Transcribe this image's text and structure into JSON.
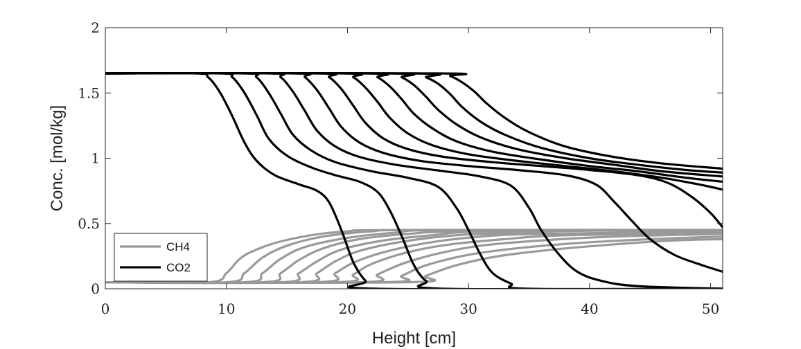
{
  "chart_data": {
    "type": "line",
    "title": "",
    "xlabel": "Height [cm]",
    "ylabel": "Conc. [mol/kg]",
    "xlim": [
      0,
      51
    ],
    "ylim": [
      0,
      2
    ],
    "xticks": [
      0,
      10,
      20,
      30,
      40,
      50
    ],
    "yticks": [
      0,
      0.5,
      1,
      1.5,
      2
    ],
    "xtick_labels": [
      "0",
      "10",
      "20",
      "30",
      "40",
      "50"
    ],
    "ytick_labels": [
      "0",
      "0.5",
      "1",
      "1.5",
      "2"
    ],
    "grid": false,
    "box": true,
    "legend": {
      "position": "bottom-left",
      "entries": [
        "CH4",
        "CO2"
      ]
    },
    "colors": {
      "CH4": "#999999",
      "CO2": "#000000"
    },
    "series": [
      {
        "name": "CH4",
        "curves": [
          [
            [
              0,
              0.05
            ],
            [
              8.5,
              0.05
            ],
            [
              10,
              0.12
            ],
            [
              11,
              0.22
            ],
            [
              12,
              0.28
            ],
            [
              14,
              0.35
            ],
            [
              17,
              0.41
            ],
            [
              20,
              0.44
            ],
            [
              24,
              0.45
            ],
            [
              51,
              0.45
            ]
          ],
          [
            [
              0,
              0.05
            ],
            [
              10,
              0.05
            ],
            [
              11.5,
              0.12
            ],
            [
              13,
              0.24
            ],
            [
              15,
              0.33
            ],
            [
              18,
              0.4
            ],
            [
              22,
              0.44
            ],
            [
              26,
              0.45
            ],
            [
              51,
              0.45
            ]
          ],
          [
            [
              0,
              0.05
            ],
            [
              11.5,
              0.05
            ],
            [
              13,
              0.12
            ],
            [
              14.5,
              0.23
            ],
            [
              16.5,
              0.32
            ],
            [
              20,
              0.39
            ],
            [
              24,
              0.43
            ],
            [
              28,
              0.45
            ],
            [
              51,
              0.45
            ]
          ],
          [
            [
              0,
              0.05
            ],
            [
              13,
              0.05
            ],
            [
              14.5,
              0.12
            ],
            [
              16,
              0.22
            ],
            [
              18,
              0.31
            ],
            [
              21,
              0.38
            ],
            [
              25,
              0.42
            ],
            [
              30,
              0.44
            ],
            [
              51,
              0.45
            ]
          ],
          [
            [
              0,
              0.05
            ],
            [
              14.5,
              0.05
            ],
            [
              16,
              0.12
            ],
            [
              17.5,
              0.21
            ],
            [
              19.5,
              0.3
            ],
            [
              23,
              0.37
            ],
            [
              27,
              0.41
            ],
            [
              32,
              0.44
            ],
            [
              51,
              0.45
            ]
          ],
          [
            [
              0,
              0.05
            ],
            [
              16,
              0.05
            ],
            [
              17.5,
              0.12
            ],
            [
              19,
              0.21
            ],
            [
              21,
              0.29
            ],
            [
              24.5,
              0.36
            ],
            [
              29,
              0.41
            ],
            [
              34,
              0.43
            ],
            [
              40,
              0.445
            ],
            [
              51,
              0.45
            ]
          ],
          [
            [
              0,
              0.05
            ],
            [
              17.5,
              0.05
            ],
            [
              19,
              0.12
            ],
            [
              20.5,
              0.2
            ],
            [
              23,
              0.28
            ],
            [
              26.5,
              0.35
            ],
            [
              31,
              0.4
            ],
            [
              36,
              0.42
            ],
            [
              51,
              0.44
            ]
          ],
          [
            [
              0,
              0.05
            ],
            [
              19,
              0.05
            ],
            [
              20.5,
              0.11
            ],
            [
              22,
              0.19
            ],
            [
              25,
              0.28
            ],
            [
              28.5,
              0.34
            ],
            [
              33,
              0.38
            ],
            [
              38,
              0.41
            ],
            [
              51,
              0.43
            ]
          ],
          [
            [
              0,
              0.05
            ],
            [
              21,
              0.05
            ],
            [
              22.5,
              0.11
            ],
            [
              24.5,
              0.19
            ],
            [
              27.5,
              0.27
            ],
            [
              31,
              0.33
            ],
            [
              36,
              0.37
            ],
            [
              42,
              0.4
            ],
            [
              51,
              0.42
            ]
          ],
          [
            [
              0,
              0.05
            ],
            [
              23,
              0.05
            ],
            [
              24.5,
              0.1
            ],
            [
              26.5,
              0.18
            ],
            [
              30,
              0.26
            ],
            [
              34,
              0.31
            ],
            [
              39,
              0.35
            ],
            [
              45,
              0.38
            ],
            [
              51,
              0.4
            ]
          ],
          [
            [
              0,
              0.05
            ],
            [
              25,
              0.05
            ],
            [
              26.5,
              0.1
            ],
            [
              29,
              0.18
            ],
            [
              32.5,
              0.25
            ],
            [
              37,
              0.3
            ],
            [
              42,
              0.34
            ],
            [
              47,
              0.37
            ],
            [
              51,
              0.38
            ]
          ]
        ]
      },
      {
        "name": "CO2",
        "curves": [
          [
            [
              0,
              1.65
            ],
            [
              7.5,
              1.65
            ],
            [
              8.5,
              1.62
            ],
            [
              9.5,
              1.5
            ],
            [
              10.5,
              1.32
            ],
            [
              11.5,
              1.12
            ],
            [
              12.5,
              0.98
            ],
            [
              14,
              0.87
            ],
            [
              16,
              0.8
            ],
            [
              17.5,
              0.75
            ],
            [
              18.5,
              0.66
            ],
            [
              19.5,
              0.45
            ],
            [
              20.5,
              0.2
            ],
            [
              21.5,
              0.06
            ],
            [
              22.5,
              0.0
            ],
            [
              51,
              0.0
            ]
          ],
          [
            [
              0,
              1.65
            ],
            [
              9.5,
              1.65
            ],
            [
              10.5,
              1.62
            ],
            [
              11.5,
              1.5
            ],
            [
              12.5,
              1.33
            ],
            [
              13.5,
              1.15
            ],
            [
              15,
              1.02
            ],
            [
              17,
              0.93
            ],
            [
              19,
              0.87
            ],
            [
              21,
              0.82
            ],
            [
              22.5,
              0.74
            ],
            [
              23.5,
              0.6
            ],
            [
              24.5,
              0.4
            ],
            [
              25.5,
              0.18
            ],
            [
              26.5,
              0.06
            ],
            [
              28,
              0.0
            ],
            [
              51,
              0.0
            ]
          ],
          [
            [
              0,
              1.65
            ],
            [
              11.5,
              1.65
            ],
            [
              12.5,
              1.62
            ],
            [
              13.5,
              1.5
            ],
            [
              14.5,
              1.34
            ],
            [
              15.5,
              1.18
            ],
            [
              17,
              1.06
            ],
            [
              19,
              0.97
            ],
            [
              22,
              0.9
            ],
            [
              25,
              0.85
            ],
            [
              27.5,
              0.78
            ],
            [
              29,
              0.62
            ],
            [
              30,
              0.45
            ],
            [
              31,
              0.26
            ],
            [
              32,
              0.12
            ],
            [
              33.5,
              0.04
            ],
            [
              35,
              0.0
            ],
            [
              51,
              0.0
            ]
          ],
          [
            [
              0,
              1.65
            ],
            [
              13.5,
              1.65
            ],
            [
              14.5,
              1.62
            ],
            [
              15.5,
              1.51
            ],
            [
              16.5,
              1.36
            ],
            [
              17.5,
              1.21
            ],
            [
              19,
              1.09
            ],
            [
              21,
              1.01
            ],
            [
              24,
              0.95
            ],
            [
              28,
              0.9
            ],
            [
              31,
              0.86
            ],
            [
              33.5,
              0.79
            ],
            [
              35,
              0.62
            ],
            [
              36,
              0.45
            ],
            [
              37.5,
              0.26
            ],
            [
              39,
              0.13
            ],
            [
              41,
              0.06
            ],
            [
              44,
              0.02
            ],
            [
              51,
              0.0
            ]
          ],
          [
            [
              0,
              1.65
            ],
            [
              15.5,
              1.65
            ],
            [
              16.5,
              1.62
            ],
            [
              17.5,
              1.52
            ],
            [
              18.5,
              1.38
            ],
            [
              19.5,
              1.24
            ],
            [
              21,
              1.12
            ],
            [
              23,
              1.04
            ],
            [
              26,
              0.98
            ],
            [
              30,
              0.94
            ],
            [
              34,
              0.91
            ],
            [
              38,
              0.87
            ],
            [
              40.5,
              0.8
            ],
            [
              42,
              0.67
            ],
            [
              43.5,
              0.52
            ],
            [
              45,
              0.38
            ],
            [
              47,
              0.26
            ],
            [
              49,
              0.19
            ],
            [
              51,
              0.13
            ]
          ],
          [
            [
              0,
              1.65
            ],
            [
              17.5,
              1.65
            ],
            [
              18.5,
              1.62
            ],
            [
              19.5,
              1.53
            ],
            [
              20.5,
              1.4
            ],
            [
              21.5,
              1.27
            ],
            [
              23,
              1.15
            ],
            [
              25,
              1.07
            ],
            [
              28,
              1.01
            ],
            [
              32,
              0.97
            ],
            [
              36,
              0.94
            ],
            [
              40,
              0.91
            ],
            [
              44,
              0.87
            ],
            [
              46.5,
              0.81
            ],
            [
              48.5,
              0.7
            ],
            [
              50,
              0.58
            ],
            [
              51,
              0.47
            ]
          ],
          [
            [
              0,
              1.65
            ],
            [
              19.5,
              1.65
            ],
            [
              20.5,
              1.62
            ],
            [
              21.5,
              1.54
            ],
            [
              22.5,
              1.43
            ],
            [
              23.5,
              1.31
            ],
            [
              25,
              1.19
            ],
            [
              27,
              1.1
            ],
            [
              30,
              1.03
            ],
            [
              34,
              0.98
            ],
            [
              38,
              0.94
            ],
            [
              42,
              0.9
            ],
            [
              46,
              0.85
            ],
            [
              49,
              0.8
            ],
            [
              51,
              0.76
            ]
          ],
          [
            [
              0,
              1.65
            ],
            [
              21.5,
              1.65
            ],
            [
              22.5,
              1.62
            ],
            [
              23.5,
              1.55
            ],
            [
              24.5,
              1.45
            ],
            [
              25.5,
              1.34
            ],
            [
              27,
              1.23
            ],
            [
              29,
              1.13
            ],
            [
              32,
              1.05
            ],
            [
              36,
              0.99
            ],
            [
              40,
              0.94
            ],
            [
              44,
              0.9
            ],
            [
              48,
              0.85
            ],
            [
              51,
              0.82
            ]
          ],
          [
            [
              0,
              1.65
            ],
            [
              23.5,
              1.65
            ],
            [
              24.5,
              1.62
            ],
            [
              25.5,
              1.56
            ],
            [
              26.5,
              1.47
            ],
            [
              27.5,
              1.37
            ],
            [
              29,
              1.26
            ],
            [
              31,
              1.16
            ],
            [
              34,
              1.07
            ],
            [
              38,
              1.0
            ],
            [
              42,
              0.95
            ],
            [
              46,
              0.9
            ],
            [
              51,
              0.86
            ]
          ],
          [
            [
              0,
              1.65
            ],
            [
              25.5,
              1.65
            ],
            [
              26.5,
              1.62
            ],
            [
              27.5,
              1.57
            ],
            [
              28.5,
              1.49
            ],
            [
              29.5,
              1.39
            ],
            [
              31,
              1.28
            ],
            [
              33,
              1.18
            ],
            [
              36,
              1.08
            ],
            [
              40,
              1.0
            ],
            [
              44,
              0.95
            ],
            [
              48,
              0.91
            ],
            [
              51,
              0.89
            ]
          ],
          [
            [
              0,
              1.65
            ],
            [
              27.5,
              1.65
            ],
            [
              28.5,
              1.63
            ],
            [
              29.5,
              1.58
            ],
            [
              30.5,
              1.51
            ],
            [
              31.5,
              1.42
            ],
            [
              33,
              1.31
            ],
            [
              35,
              1.2
            ],
            [
              38,
              1.09
            ],
            [
              42,
              1.01
            ],
            [
              46,
              0.96
            ],
            [
              51,
              0.92
            ]
          ]
        ]
      }
    ]
  }
}
